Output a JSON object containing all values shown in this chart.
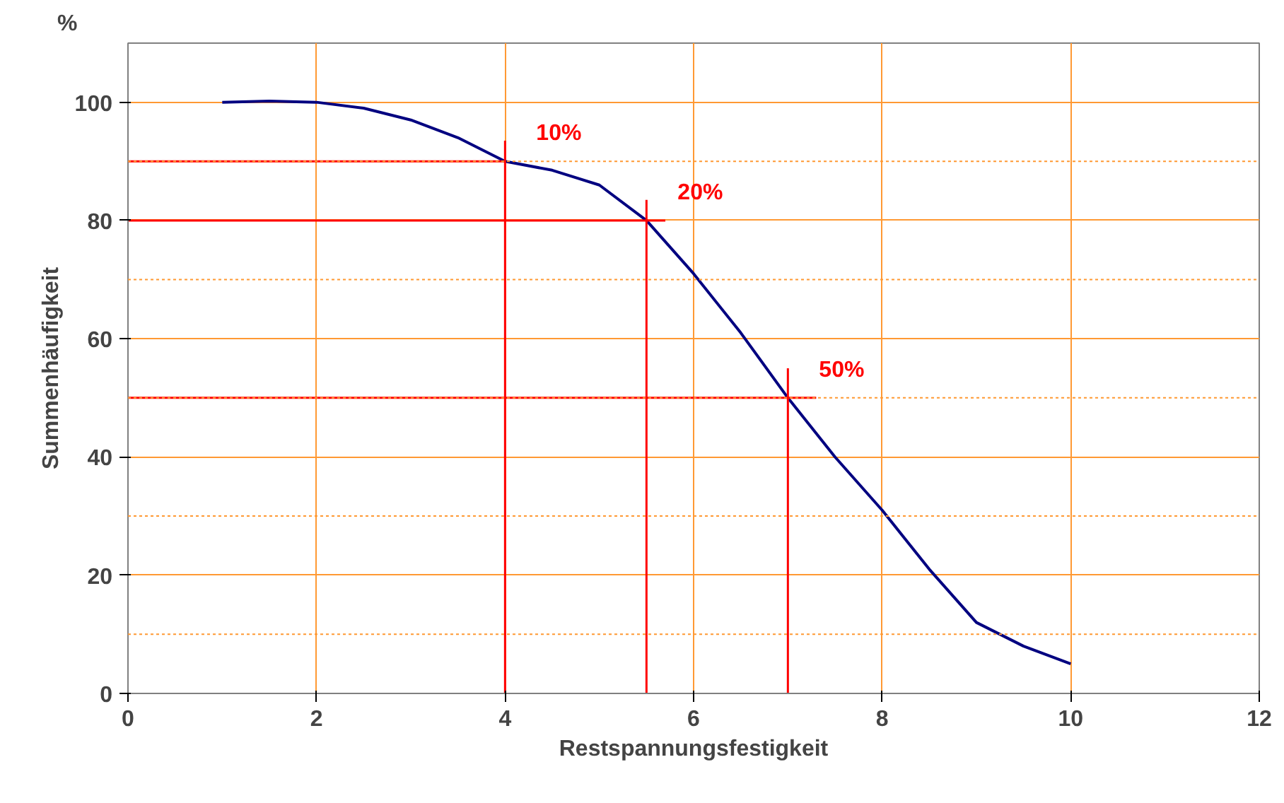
{
  "chart_data": {
    "type": "line",
    "xlabel": "Restspannungsfestigkeit",
    "ylabel": "Summenhäufigkeit",
    "xlim": [
      0,
      12
    ],
    "ylim": [
      0,
      110
    ],
    "xticks": [
      0,
      2,
      4,
      6,
      8,
      10,
      12
    ],
    "yticks": [
      0,
      {
        "value": 10,
        "label": null
      },
      20,
      {
        "value": 30,
        "label": null
      },
      40,
      {
        "value": 50,
        "label": null
      },
      60,
      {
        "value": 70,
        "label": null
      },
      80,
      {
        "value": 90,
        "label": null
      },
      100
    ],
    "grid": true,
    "marker": "none",
    "line_style": "solid",
    "series": [
      {
        "color": "#000080",
        "x": [
          1,
          1.5,
          2,
          2.5,
          3,
          3.5,
          4,
          4.5,
          5,
          5.5,
          6,
          6.5,
          7,
          7.5,
          8,
          8.5,
          9,
          9.5,
          10
        ],
        "values": [
          100,
          100.2,
          100,
          99,
          97,
          94,
          90,
          88.5,
          86,
          80,
          71,
          61,
          50,
          40,
          31,
          21,
          12,
          8,
          5
        ]
      },
      {
        "color": "#ff0000",
        "x": [
          0,
          4
        ],
        "values": [
          90,
          90
        ]
      },
      {
        "color": "#ff0000",
        "x": [
          4,
          4
        ],
        "values": [
          0,
          93.5
        ]
      },
      {
        "color": "#ff0000",
        "x": [
          0,
          5.7
        ],
        "values": [
          80,
          80
        ]
      },
      {
        "color": "#ff0000",
        "x": [
          5.5,
          5.5
        ],
        "values": [
          0,
          83.5
        ]
      },
      {
        "color": "#ff0000",
        "x": [
          0,
          7.3
        ],
        "values": [
          50,
          50
        ]
      },
      {
        "color": "#ff0000",
        "x": [
          7,
          7
        ],
        "values": [
          0,
          55
        ]
      }
    ],
    "annotations": [
      {
        "text": "10%",
        "x": 4,
        "y": 90
      },
      {
        "text": "20%",
        "x": 5.5,
        "y": 80
      },
      {
        "text": "50%",
        "x": 7,
        "y": 50
      },
      "%"
    ]
  }
}
